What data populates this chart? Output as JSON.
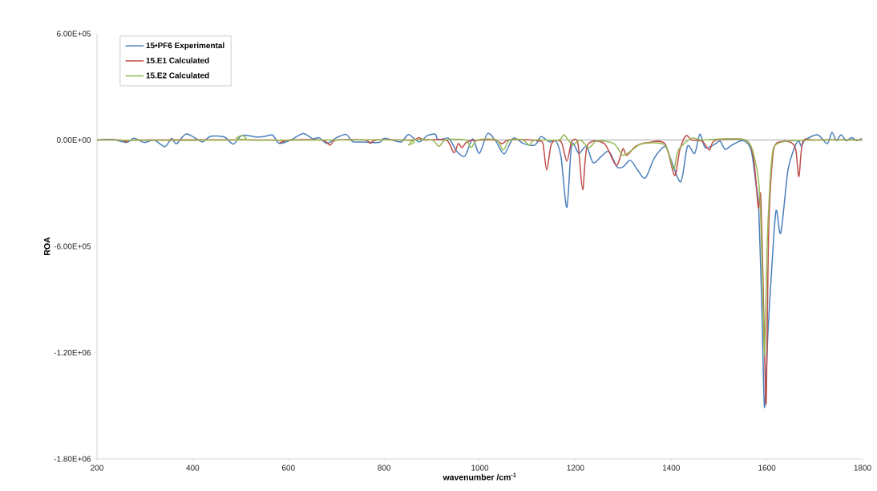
{
  "chart_data": {
    "type": "line",
    "xlabel": "wavenumber /cm$^{-1}$",
    "ylabel": "ROA",
    "xlim": [
      200,
      1800
    ],
    "xticks": [
      200,
      400,
      600,
      800,
      1000,
      1200,
      1400,
      1600,
      1800
    ],
    "ylim": [
      -1800000,
      600000
    ],
    "yticks": [
      {
        "value": -1800000,
        "label": "-1.80E+06"
      },
      {
        "value": -1200000,
        "label": "-1.20E+06"
      },
      {
        "value": -600000,
        "label": "-6.00E+05"
      },
      {
        "value": 0,
        "label": "0.00E+00"
      },
      {
        "value": 600000,
        "label": "6.00E+05"
      }
    ],
    "grid": false,
    "legend": "top left",
    "marker": "none",
    "line_style": "solid",
    "ref_lines": [
      {
        "axis": "y",
        "value": 0,
        "color": "#a6a6a6"
      }
    ],
    "series": [
      {
        "name": "15•PF6 Experimental",
        "color": "#4a7ebb",
        "x": [
          200,
          232,
          262,
          277,
          299,
          319,
          342,
          356,
          366,
          386,
          408,
          421,
          438,
          466,
          485,
          503,
          533,
          550,
          567,
          581,
          605,
          631,
          651,
          664,
          681,
          701,
          721,
          734,
          756,
          790,
          801,
          835,
          851,
          873,
          890,
          907,
          913,
          935,
          952,
          969,
          985,
          999,
          1016,
          1033,
          1051,
          1070,
          1092,
          1115,
          1128,
          1145,
          1159,
          1170,
          1182,
          1192,
          1207,
          1223,
          1237,
          1255,
          1270,
          1287,
          1300,
          1315,
          1330,
          1346,
          1365,
          1387,
          1398,
          1420,
          1434,
          1449,
          1460,
          1471,
          1488,
          1502,
          1513,
          1527,
          1550,
          1567,
          1577,
          1583,
          1590,
          1595,
          1602,
          1609,
          1619,
          1629,
          1644,
          1659,
          1667,
          1672,
          1680,
          1706,
          1726,
          1736,
          1745,
          1755,
          1766,
          1777,
          1788,
          1798
        ],
        "values": [
          0,
          3000,
          -14000,
          10000,
          -14000,
          0,
          -37000,
          9000,
          -21000,
          34000,
          6000,
          -11000,
          21000,
          17000,
          -23000,
          26000,
          17000,
          20000,
          27000,
          -19000,
          0,
          36000,
          7000,
          13000,
          -19000,
          14000,
          31000,
          -9000,
          -11000,
          -14000,
          10000,
          -11000,
          31000,
          -11000,
          24000,
          33000,
          0,
          10000,
          -65000,
          -90000,
          7000,
          -76000,
          36000,
          -4000,
          -79000,
          10000,
          -21000,
          -29000,
          19000,
          -10000,
          -4000,
          -100000,
          -380000,
          -30000,
          -76000,
          -36000,
          -129000,
          -90000,
          -65000,
          -153000,
          -150000,
          -115000,
          -170000,
          -215000,
          -100000,
          -36000,
          -100000,
          -236000,
          -36000,
          -76000,
          33000,
          -43000,
          -29000,
          -7000,
          -53000,
          -29000,
          -4000,
          -57000,
          -245000,
          -387000,
          -1000000,
          -1510000,
          -1100000,
          -774000,
          -400000,
          -525000,
          -172000,
          -34000,
          -7000,
          -36000,
          0,
          29000,
          -21000,
          43000,
          -4000,
          29000,
          -4000,
          14000,
          -4000,
          10000
        ]
      },
      {
        "name": "15.E1 Calculated",
        "color": "#be4b48",
        "x": [
          200,
          250,
          263,
          280,
          570,
          583,
          600,
          670,
          687,
          700,
          760,
          771,
          785,
          860,
          872,
          885,
          930,
          946,
          955,
          963,
          977,
          1030,
          1047,
          1060,
          1110,
          1124,
          1132,
          1140,
          1150,
          1170,
          1182,
          1192,
          1205,
          1215,
          1225,
          1260,
          1285,
          1299,
          1307,
          1326,
          1350,
          1387,
          1407,
          1418,
          1431,
          1443,
          1465,
          1480,
          1492,
          1555,
          1572,
          1582,
          1587,
          1592,
          1598,
          1601,
          1604,
          1611,
          1619,
          1647,
          1660,
          1667,
          1675,
          1700,
          1800
        ],
        "values": [
          0,
          0,
          -11000,
          0,
          0,
          -15000,
          0,
          0,
          -29000,
          0,
          0,
          -19000,
          0,
          0,
          14000,
          0,
          0,
          -72000,
          -20000,
          -43000,
          -7000,
          0,
          -21000,
          0,
          0,
          -7000,
          -20000,
          -170000,
          -20000,
          -10000,
          -120000,
          -10000,
          -20000,
          -280000,
          -30000,
          -20000,
          -143000,
          -50000,
          -86000,
          -36000,
          -15000,
          -21000,
          -200000,
          -57000,
          24000,
          0,
          -7000,
          -57000,
          -3000,
          0,
          -100000,
          -380000,
          -310000,
          -800000,
          -1490000,
          -1000000,
          -486000,
          -129000,
          -21000,
          -10000,
          -50000,
          -206000,
          -10000,
          0,
          0
        ]
      },
      {
        "name": "15.E2 Calculated",
        "color": "#98b954",
        "x": [
          200,
          490,
          503,
          515,
          840,
          851,
          862,
          900,
          915,
          928,
          970,
          982,
          995,
          1035,
          1049,
          1062,
          1090,
          1103,
          1115,
          1165,
          1175,
          1185,
          1195,
          1210,
          1228,
          1245,
          1280,
          1299,
          1318,
          1340,
          1387,
          1405,
          1415,
          1443,
          1465,
          1555,
          1577,
          1585,
          1590,
          1595,
          1599,
          1602,
          1611,
          1622,
          1650,
          1700,
          1800
        ],
        "values": [
          0,
          0,
          26000,
          0,
          0,
          -29000,
          0,
          0,
          -36000,
          0,
          0,
          -43000,
          0,
          0,
          -57000,
          0,
          0,
          -29000,
          0,
          0,
          29000,
          0,
          -29000,
          0,
          -43000,
          -5000,
          -20000,
          -86000,
          -57000,
          -20000,
          -29000,
          -165000,
          -57000,
          10000,
          0,
          0,
          -136000,
          -310000,
          -700000,
          -1217000,
          -800000,
          -486000,
          -86000,
          -21000,
          -5000,
          0,
          0
        ]
      }
    ]
  }
}
